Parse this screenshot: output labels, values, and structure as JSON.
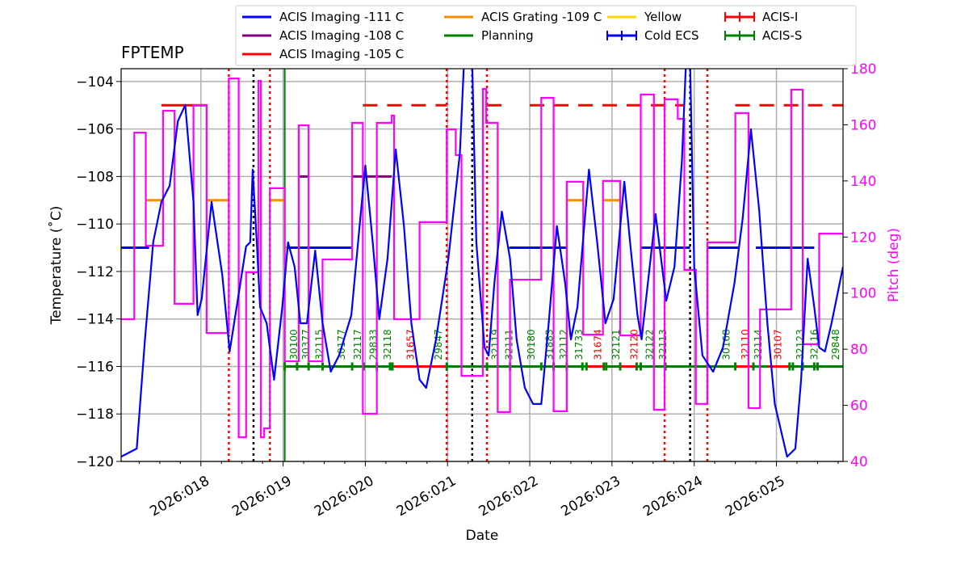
{
  "chart_data": {
    "type": "line",
    "title": "FPTEMP",
    "xlabel": "Date",
    "ylabel": "Temperature ($^\\circ$C)",
    "ylabel_display": "Temperature (˚C)",
    "y2label": "Pitch (deg)",
    "xlim": [
      17.03,
      25.81
    ],
    "ylim": [
      -120,
      -103.46
    ],
    "y2lim": [
      40,
      180
    ],
    "grid": true,
    "legend_placement": "top",
    "xticks": [
      {
        "v": 18,
        "label": "2026:018"
      },
      {
        "v": 19,
        "label": "2026:019"
      },
      {
        "v": 20,
        "label": "2026:020"
      },
      {
        "v": 21,
        "label": "2026:021"
      },
      {
        "v": 22,
        "label": "2026:022"
      },
      {
        "v": 23,
        "label": "2026:023"
      },
      {
        "v": 24,
        "label": "2026:024"
      },
      {
        "v": 25,
        "label": "2026:025"
      }
    ],
    "yticks": [
      -104,
      -106,
      -108,
      -110,
      -112,
      -114,
      -116,
      -118,
      -120
    ],
    "y2ticks": [
      180,
      160,
      140,
      120,
      100,
      80,
      60,
      40
    ],
    "colors": {
      "temp": "#0000ff",
      "pitch": "#ff00ff",
      "i111": "#0000ff",
      "i108": "#800080",
      "i105": "#ff0000",
      "g109": "#ff8c00",
      "planning": "#008000",
      "yellow": "#ffd700",
      "acis_i": "#ff0000",
      "acis_s": "#008000"
    },
    "legend": [
      {
        "label": "ACIS Imaging -111 C",
        "color": "#0000ff",
        "kind": "line"
      },
      {
        "label": "ACIS Imaging -108 C",
        "color": "#800080",
        "kind": "line"
      },
      {
        "label": "ACIS Imaging -105 C",
        "color": "#ff0000",
        "kind": "line"
      },
      {
        "label": "ACIS Grating -109 C",
        "color": "#ff8c00",
        "kind": "line"
      },
      {
        "label": "Planning",
        "color": "#008000",
        "kind": "line"
      },
      {
        "label": "Yellow",
        "color": "#ffd700",
        "kind": "line"
      },
      {
        "label": "Cold ECS",
        "color": "#0000ff",
        "kind": "errbar"
      },
      {
        "label": "ACIS-I",
        "color": "#ff0000",
        "kind": "errbar"
      },
      {
        "label": "ACIS-S",
        "color": "#008000",
        "kind": "errbar"
      }
    ],
    "temperature": [
      [
        17.03,
        -119.8
      ],
      [
        17.22,
        -119.46
      ],
      [
        17.32,
        -114.86
      ],
      [
        17.42,
        -110.77
      ],
      [
        17.52,
        -109.07
      ],
      [
        17.62,
        -108.39
      ],
      [
        17.72,
        -105.67
      ],
      [
        17.81,
        -104.99
      ],
      [
        17.91,
        -109.07
      ],
      [
        17.96,
        -113.84
      ],
      [
        18.01,
        -113.16
      ],
      [
        18.13,
        -109.07
      ],
      [
        18.26,
        -112.14
      ],
      [
        18.35,
        -115.37
      ],
      [
        18.45,
        -113.16
      ],
      [
        18.55,
        -110.94
      ],
      [
        18.6,
        -110.77
      ],
      [
        18.63,
        -107.71
      ],
      [
        18.68,
        -110.77
      ],
      [
        18.72,
        -113.5
      ],
      [
        18.8,
        -114.18
      ],
      [
        18.89,
        -116.56
      ],
      [
        18.99,
        -113.5
      ],
      [
        19.06,
        -110.77
      ],
      [
        19.14,
        -111.8
      ],
      [
        19.21,
        -114.18
      ],
      [
        19.29,
        -114.18
      ],
      [
        19.39,
        -111.12
      ],
      [
        19.48,
        -114.18
      ],
      [
        19.58,
        -116.22
      ],
      [
        19.68,
        -115.54
      ],
      [
        19.83,
        -113.84
      ],
      [
        19.93,
        -110.09
      ],
      [
        20.0,
        -107.54
      ],
      [
        20.09,
        -110.77
      ],
      [
        20.17,
        -114.01
      ],
      [
        20.27,
        -111.46
      ],
      [
        20.37,
        -106.86
      ],
      [
        20.47,
        -110.09
      ],
      [
        20.56,
        -114.18
      ],
      [
        20.66,
        -116.56
      ],
      [
        20.74,
        -116.9
      ],
      [
        20.86,
        -114.86
      ],
      [
        21.01,
        -111.46
      ],
      [
        21.15,
        -107.03
      ],
      [
        21.2,
        -103.2
      ],
      [
        21.3,
        -103.2
      ],
      [
        21.35,
        -110.77
      ],
      [
        21.45,
        -115.2
      ],
      [
        21.5,
        -115.54
      ],
      [
        21.57,
        -112.48
      ],
      [
        21.66,
        -109.48
      ],
      [
        21.76,
        -111.46
      ],
      [
        21.84,
        -114.86
      ],
      [
        21.94,
        -116.9
      ],
      [
        22.04,
        -117.58
      ],
      [
        22.14,
        -117.58
      ],
      [
        22.23,
        -114.18
      ],
      [
        22.33,
        -110.09
      ],
      [
        22.43,
        -112.48
      ],
      [
        22.5,
        -114.86
      ],
      [
        22.58,
        -113.5
      ],
      [
        22.72,
        -107.71
      ],
      [
        22.82,
        -110.77
      ],
      [
        22.92,
        -114.18
      ],
      [
        23.02,
        -113.16
      ],
      [
        23.15,
        -108.22
      ],
      [
        23.22,
        -110.77
      ],
      [
        23.31,
        -113.84
      ],
      [
        23.36,
        -114.86
      ],
      [
        23.53,
        -109.58
      ],
      [
        23.66,
        -113.23
      ],
      [
        23.76,
        -111.8
      ],
      [
        23.85,
        -107.37
      ],
      [
        23.9,
        -103.2
      ],
      [
        23.95,
        -103.2
      ],
      [
        24.0,
        -111.8
      ],
      [
        24.1,
        -115.54
      ],
      [
        24.23,
        -116.22
      ],
      [
        24.35,
        -115.2
      ],
      [
        24.49,
        -112.48
      ],
      [
        24.59,
        -109.75
      ],
      [
        24.69,
        -106.01
      ],
      [
        24.79,
        -109.41
      ],
      [
        24.89,
        -114.18
      ],
      [
        24.98,
        -117.58
      ],
      [
        25.13,
        -119.8
      ],
      [
        25.23,
        -119.46
      ],
      [
        25.3,
        -116.56
      ],
      [
        25.38,
        -111.46
      ],
      [
        25.46,
        -113.5
      ],
      [
        25.52,
        -115.2
      ],
      [
        25.59,
        -115.37
      ],
      [
        25.67,
        -114.18
      ],
      [
        25.81,
        -111.8
      ]
    ],
    "pitch_steps": [
      [
        17.03,
        90.7
      ],
      [
        17.19,
        157.2
      ],
      [
        17.33,
        116.9
      ],
      [
        17.54,
        165.0
      ],
      [
        17.68,
        96.2
      ],
      [
        17.91,
        167.0
      ],
      [
        18.07,
        85.8
      ],
      [
        18.34,
        176.5
      ],
      [
        18.46,
        48.6
      ],
      [
        18.55,
        107.4
      ],
      [
        18.7,
        175.7
      ],
      [
        18.73,
        48.6
      ],
      [
        18.77,
        51.8
      ],
      [
        18.84,
        137.4
      ],
      [
        19.02,
        75.7
      ],
      [
        19.19,
        159.8
      ],
      [
        19.31,
        75.7
      ],
      [
        19.48,
        112.0
      ],
      [
        19.84,
        160.7
      ],
      [
        19.97,
        57.0
      ],
      [
        20.14,
        160.7
      ],
      [
        20.32,
        163.3
      ],
      [
        20.35,
        90.7
      ],
      [
        20.66,
        125.3
      ],
      [
        20.99,
        158.4
      ],
      [
        21.1,
        149.2
      ],
      [
        21.17,
        70.5
      ],
      [
        21.43,
        172.8
      ],
      [
        21.47,
        160.7
      ],
      [
        21.61,
        57.6
      ],
      [
        21.76,
        104.8
      ],
      [
        22.14,
        169.6
      ],
      [
        22.29,
        57.9
      ],
      [
        22.45,
        139.7
      ],
      [
        22.65,
        85.2
      ],
      [
        22.89,
        140.0
      ],
      [
        23.1,
        84.9
      ],
      [
        23.35,
        170.8
      ],
      [
        23.51,
        58.4
      ],
      [
        23.64,
        169.1
      ],
      [
        23.8,
        162.1
      ],
      [
        23.88,
        108.3
      ],
      [
        24.02,
        60.5
      ],
      [
        24.16,
        118.1
      ],
      [
        24.5,
        164.2
      ],
      [
        24.66,
        59.0
      ],
      [
        24.8,
        94.2
      ],
      [
        25.18,
        172.5
      ],
      [
        25.32,
        81.8
      ],
      [
        25.52,
        121.2
      ],
      [
        25.81,
        121.2
      ]
    ],
    "limits": [
      {
        "temp": -111,
        "color": "#0000ff",
        "segments": [
          [
            17.03,
            17.37
          ],
          [
            19.04,
            19.83
          ],
          [
            21.75,
            22.45
          ],
          [
            23.35,
            23.95
          ],
          [
            24.16,
            24.55
          ],
          [
            24.75,
            25.46
          ]
        ]
      },
      {
        "temp": -105,
        "color": "#ff0000",
        "dashed": false,
        "segments": [
          [
            17.52,
            18.07
          ]
        ]
      },
      {
        "temp": -105,
        "color": "#ff0000",
        "dashed": true,
        "segments": [
          [
            19.97,
            20.99
          ],
          [
            21.48,
            21.76
          ],
          [
            22.0,
            23.88
          ],
          [
            24.5,
            25.81
          ]
        ]
      },
      {
        "temp": -109,
        "color": "#ff8c00",
        "segments": [
          [
            17.33,
            17.54
          ],
          [
            18.07,
            18.34
          ],
          [
            18.84,
            19.02
          ],
          [
            22.45,
            22.65
          ],
          [
            22.89,
            23.1
          ]
        ]
      },
      {
        "temp": -108,
        "color": "#800080",
        "segments": [
          [
            19.19,
            19.31
          ],
          [
            19.84,
            20.32
          ]
        ]
      }
    ],
    "vlines": [
      {
        "x": 18.34,
        "color": "#ff0000",
        "style": "dotted"
      },
      {
        "x": 18.84,
        "color": "#ff0000",
        "style": "dotted"
      },
      {
        "x": 20.99,
        "color": "#ff0000",
        "style": "dotted"
      },
      {
        "x": 21.48,
        "color": "#ff0000",
        "style": "dotted"
      },
      {
        "x": 23.64,
        "color": "#ff0000",
        "style": "dotted"
      },
      {
        "x": 24.16,
        "color": "#ff0000",
        "style": "dotted"
      },
      {
        "x": 18.64,
        "color": "#000000",
        "style": "dotted"
      },
      {
        "x": 21.3,
        "color": "#000000",
        "style": "dotted"
      },
      {
        "x": 23.95,
        "color": "#000000",
        "style": "dotted"
      },
      {
        "x": 19.02,
        "color": "#008000",
        "style": "solid"
      }
    ],
    "obsid_level": -116,
    "obsids": [
      {
        "id": "30100",
        "x": 19.12,
        "inst": "S"
      },
      {
        "id": "30377",
        "x": 19.27,
        "inst": "S"
      },
      {
        "id": "32115",
        "x": 19.43,
        "inst": "S"
      },
      {
        "id": "30177",
        "x": 19.7,
        "inst": "S"
      },
      {
        "id": "32117",
        "x": 19.9,
        "inst": "S"
      },
      {
        "id": "29833",
        "x": 20.09,
        "inst": "S"
      },
      {
        "id": "32118",
        "x": 20.26,
        "inst": "S"
      },
      {
        "id": "31657",
        "x": 20.54,
        "inst": "I",
        "start": 20.33,
        "end": 20.99
      },
      {
        "id": "29847",
        "x": 20.88,
        "inst": "S"
      },
      {
        "id": "32119",
        "x": 21.57,
        "inst": "S"
      },
      {
        "id": "32111",
        "x": 21.74,
        "inst": "S"
      },
      {
        "id": "30180",
        "x": 22.01,
        "inst": "S"
      },
      {
        "id": "31883",
        "x": 22.23,
        "inst": "S"
      },
      {
        "id": "32112",
        "x": 22.4,
        "inst": "S"
      },
      {
        "id": "31733",
        "x": 22.59,
        "inst": "S"
      },
      {
        "id": "31674",
        "x": 22.82,
        "inst": "I",
        "start": 22.69,
        "end": 22.9
      },
      {
        "id": "32121",
        "x": 23.04,
        "inst": "S"
      },
      {
        "id": "32120",
        "x": 23.26,
        "inst": "I",
        "start": 23.1,
        "end": 23.3
      },
      {
        "id": "32122",
        "x": 23.45,
        "inst": "S"
      },
      {
        "id": "32113",
        "x": 23.61,
        "inst": "S"
      },
      {
        "id": "30168",
        "x": 24.38,
        "inst": "S"
      },
      {
        "id": "32110",
        "x": 24.61,
        "inst": "I",
        "start": 24.5,
        "end": 24.72
      },
      {
        "id": "32114",
        "x": 24.77,
        "inst": "S"
      },
      {
        "id": "30107",
        "x": 25.01,
        "inst": "I",
        "start": 24.89,
        "end": 25.16
      },
      {
        "id": "32123",
        "x": 25.28,
        "inst": "S"
      },
      {
        "id": "32116",
        "x": 25.45,
        "inst": "S"
      },
      {
        "id": "29848",
        "x": 25.71,
        "inst": "S"
      }
    ],
    "obsid_ticks": [
      19.02,
      19.17,
      19.31,
      19.48,
      19.84,
      19.98,
      20.14,
      20.3,
      20.33,
      20.99,
      21.48,
      21.76,
      22.14,
      22.29,
      22.45,
      22.64,
      22.69,
      22.9,
      22.93,
      23.1,
      23.3,
      23.35,
      23.65,
      24.5,
      24.72,
      25.16,
      25.2,
      25.32,
      25.46,
      25.5
    ]
  }
}
